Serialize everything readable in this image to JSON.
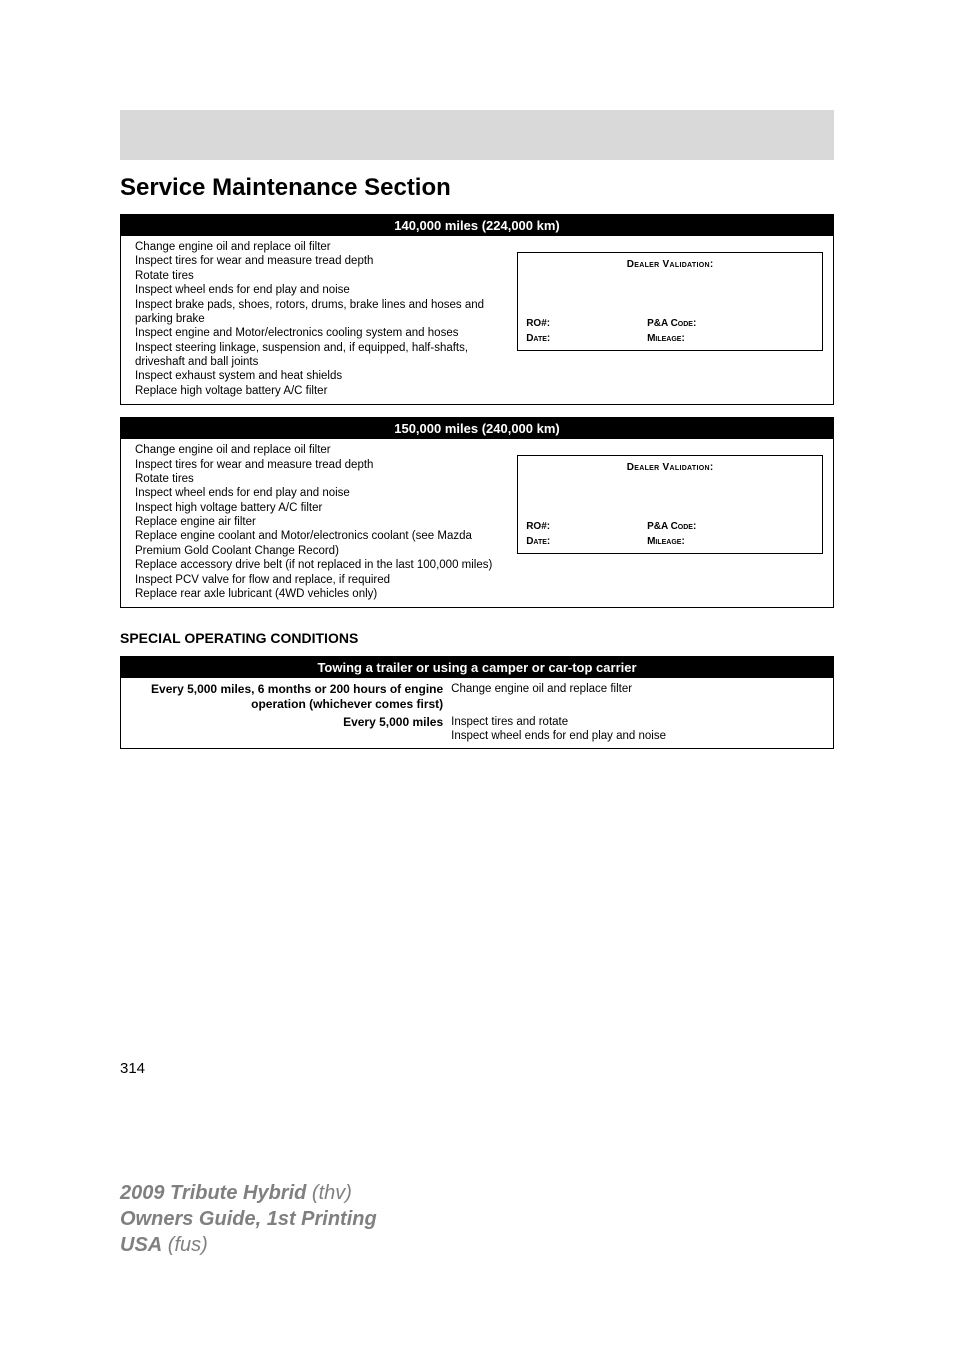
{
  "colors": {
    "banner_bg": "#d9d9d9",
    "header_bg": "#000000",
    "header_text": "#ffffff",
    "page_bg": "#ffffff",
    "footer_text": "#808080",
    "border": "#000000"
  },
  "typography": {
    "section_title_size": 24,
    "interval_header_size": 13,
    "task_size": 11.5,
    "validation_size": 10,
    "subheading_size": 14,
    "footer_size": 20,
    "page_num_size": 15
  },
  "section_title": "Service Maintenance Section",
  "intervals": [
    {
      "header": "140,000 miles (224,000 km)",
      "tasks": [
        "Change engine oil and replace oil filter",
        "Inspect tires for wear and measure tread depth",
        "Rotate tires",
        "Inspect wheel ends for end play and noise",
        "Inspect brake pads, shoes, rotors, drums, brake lines and hoses and parking brake",
        "Inspect engine and Motor/electronics cooling system and hoses",
        "Inspect steering linkage, suspension and, if equipped, half-shafts, driveshaft and ball joints",
        "Inspect exhaust system and heat shields",
        "Replace high voltage battery A/C filter"
      ]
    },
    {
      "header": "150,000 miles (240,000 km)",
      "tasks": [
        "Change engine oil and replace oil filter",
        "Inspect tires for wear and measure tread depth",
        "Rotate tires",
        "Inspect wheel ends for end play and noise",
        "Inspect high voltage battery A/C filter",
        "Replace engine air filter",
        "Replace engine coolant and Motor/electronics coolant (see Mazda Premium Gold Coolant Change Record)",
        "Replace accessory drive belt (if not replaced in the last 100,000 miles)",
        "Inspect PCV valve for flow and replace, if required",
        "Replace rear axle lubricant (4WD vehicles only)"
      ]
    }
  ],
  "validation": {
    "title": "Dealer Validation:",
    "ro_label": "RO#:",
    "pa_label": "P&A Code:",
    "date_label": "Date:",
    "mileage_label": "Mileage:"
  },
  "subheading": "SPECIAL OPERATING CONDITIONS",
  "towing": {
    "header": "Towing a trailer or using a camper or car-top carrier",
    "rows": [
      {
        "left": "Every 5,000 miles, 6 months or 200 hours of engine operation (whichever comes first)",
        "right": "Change engine oil and replace filter"
      },
      {
        "left": "Every 5,000 miles",
        "right_lines": [
          "Inspect tires and rotate",
          "Inspect wheel ends for end play and noise"
        ]
      }
    ]
  },
  "page_number": "314",
  "footer": {
    "line1_bold": "2009 Tribute Hybrid",
    "line1_plain": " (thv)",
    "line2": "Owners Guide, 1st Printing",
    "line3_bold": "USA",
    "line3_plain": " (fus)"
  }
}
